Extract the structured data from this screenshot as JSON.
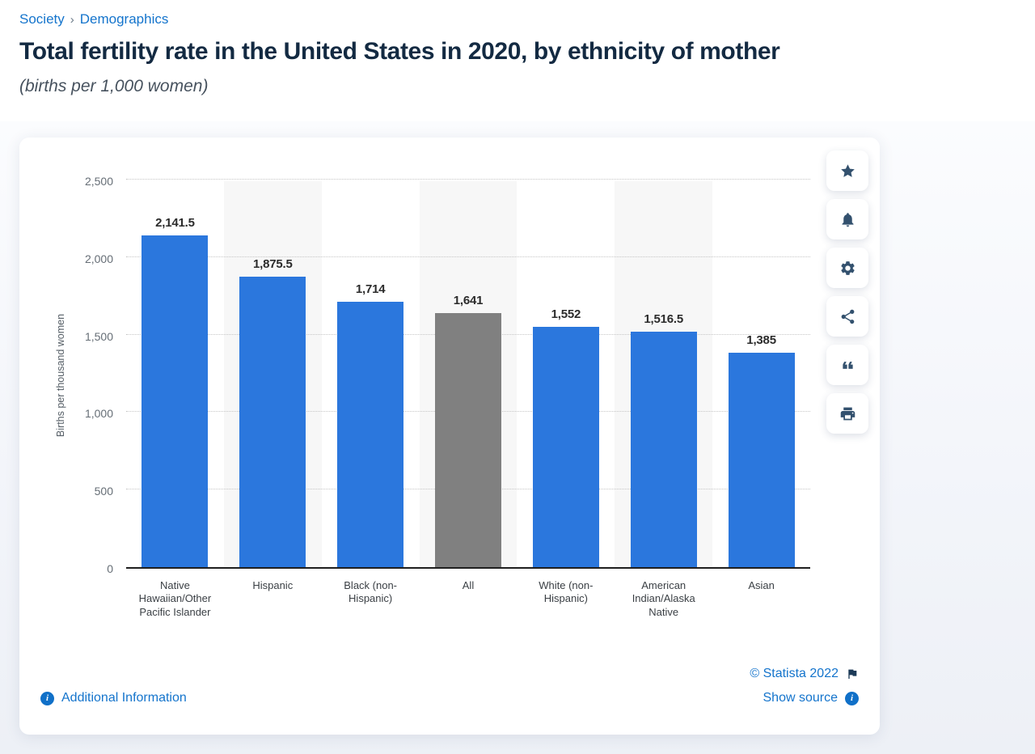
{
  "breadcrumb": {
    "items": [
      "Society",
      "Demographics"
    ],
    "separator": "›"
  },
  "header": {
    "title": "Total fertility rate in the United States in 2020, by ethnicity of mother",
    "subtitle": "(births per 1,000 women)"
  },
  "chart_data": {
    "type": "bar",
    "categories": [
      "Native Hawaiian/Other Pacific Islander",
      "Hispanic",
      "Black (non-Hispanic)",
      "All",
      "White (non-Hispanic)",
      "American Indian/Alaska Native",
      "Asian"
    ],
    "values": [
      2141.5,
      1875.5,
      1714,
      1641,
      1552,
      1516.5,
      1385
    ],
    "value_labels": [
      "2,141.5",
      "1,875.5",
      "1,714",
      "1,641",
      "1,552",
      "1,516.5",
      "1,385"
    ],
    "title": "Total fertility rate in the United States in 2020, by ethnicity of mother",
    "xlabel": "",
    "ylabel": "Births per thousand women",
    "ylim": [
      0,
      2500
    ],
    "yticks": [
      {
        "value": 0,
        "label": "0"
      },
      {
        "value": 500,
        "label": "500"
      },
      {
        "value": 1000,
        "label": "1,000"
      },
      {
        "value": 1500,
        "label": "1,500"
      },
      {
        "value": 2000,
        "label": "2,000"
      },
      {
        "value": 2500,
        "label": "2,500"
      }
    ],
    "grid": "horizontal-dotted",
    "legend": "none",
    "bar_color": "#2b77dd",
    "highlight_index": 3,
    "highlight_color": "#808080",
    "column_stripe_color": "#f7f7f7"
  },
  "toolbar": {
    "buttons": [
      {
        "id": "favorite",
        "icon": "star-icon"
      },
      {
        "id": "alert",
        "icon": "bell-icon"
      },
      {
        "id": "settings",
        "icon": "gear-icon"
      },
      {
        "id": "share",
        "icon": "share-icon"
      },
      {
        "id": "cite",
        "icon": "quote-icon"
      },
      {
        "id": "print",
        "icon": "printer-icon"
      }
    ]
  },
  "footer": {
    "additional_info": "Additional Information",
    "copyright": "© Statista 2022",
    "show_source": "Show source"
  },
  "colors": {
    "accent_blue": "#1474cc",
    "title_navy": "#132a42",
    "icon_navy": "#33516e"
  }
}
